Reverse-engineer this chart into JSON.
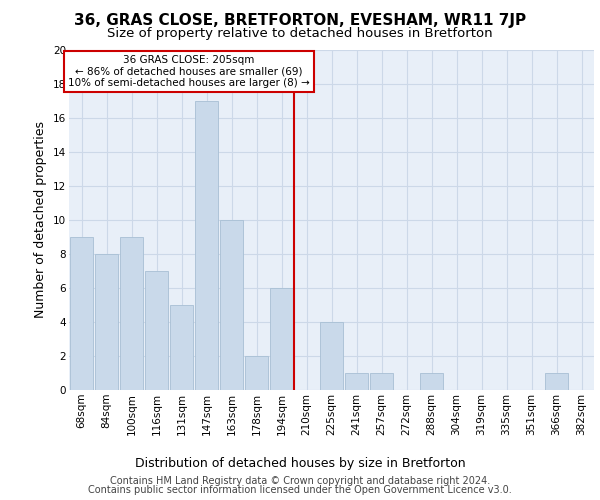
{
  "title": "36, GRAS CLOSE, BRETFORTON, EVESHAM, WR11 7JP",
  "subtitle": "Size of property relative to detached houses in Bretforton",
  "xlabel": "Distribution of detached houses by size in Bretforton",
  "ylabel": "Number of detached properties",
  "categories": [
    "68sqm",
    "84sqm",
    "100sqm",
    "116sqm",
    "131sqm",
    "147sqm",
    "163sqm",
    "178sqm",
    "194sqm",
    "210sqm",
    "225sqm",
    "241sqm",
    "257sqm",
    "272sqm",
    "288sqm",
    "304sqm",
    "319sqm",
    "335sqm",
    "351sqm",
    "366sqm",
    "382sqm"
  ],
  "values": [
    9,
    8,
    9,
    7,
    5,
    17,
    10,
    2,
    6,
    0,
    4,
    1,
    1,
    0,
    1,
    0,
    0,
    0,
    0,
    1,
    0
  ],
  "bar_color": "#c9d9ea",
  "bar_edge_color": "#a8bfd4",
  "vline_color": "#cc0000",
  "vline_x": 8.5,
  "annotation_line1": "36 GRAS CLOSE: 205sqm",
  "annotation_line2": "← 86% of detached houses are smaller (69)",
  "annotation_line3": "10% of semi-detached houses are larger (8) →",
  "ylim": [
    0,
    20
  ],
  "yticks": [
    0,
    2,
    4,
    6,
    8,
    10,
    12,
    14,
    16,
    18,
    20
  ],
  "grid_color": "#ccd8e8",
  "background_color": "#e8eff8",
  "footer_line1": "Contains HM Land Registry data © Crown copyright and database right 2024.",
  "footer_line2": "Contains public sector information licensed under the Open Government Licence v3.0.",
  "title_fontsize": 11,
  "subtitle_fontsize": 9.5,
  "xlabel_fontsize": 9,
  "ylabel_fontsize": 9,
  "tick_fontsize": 7.5,
  "annotation_fontsize": 7.5,
  "footer_fontsize": 7
}
